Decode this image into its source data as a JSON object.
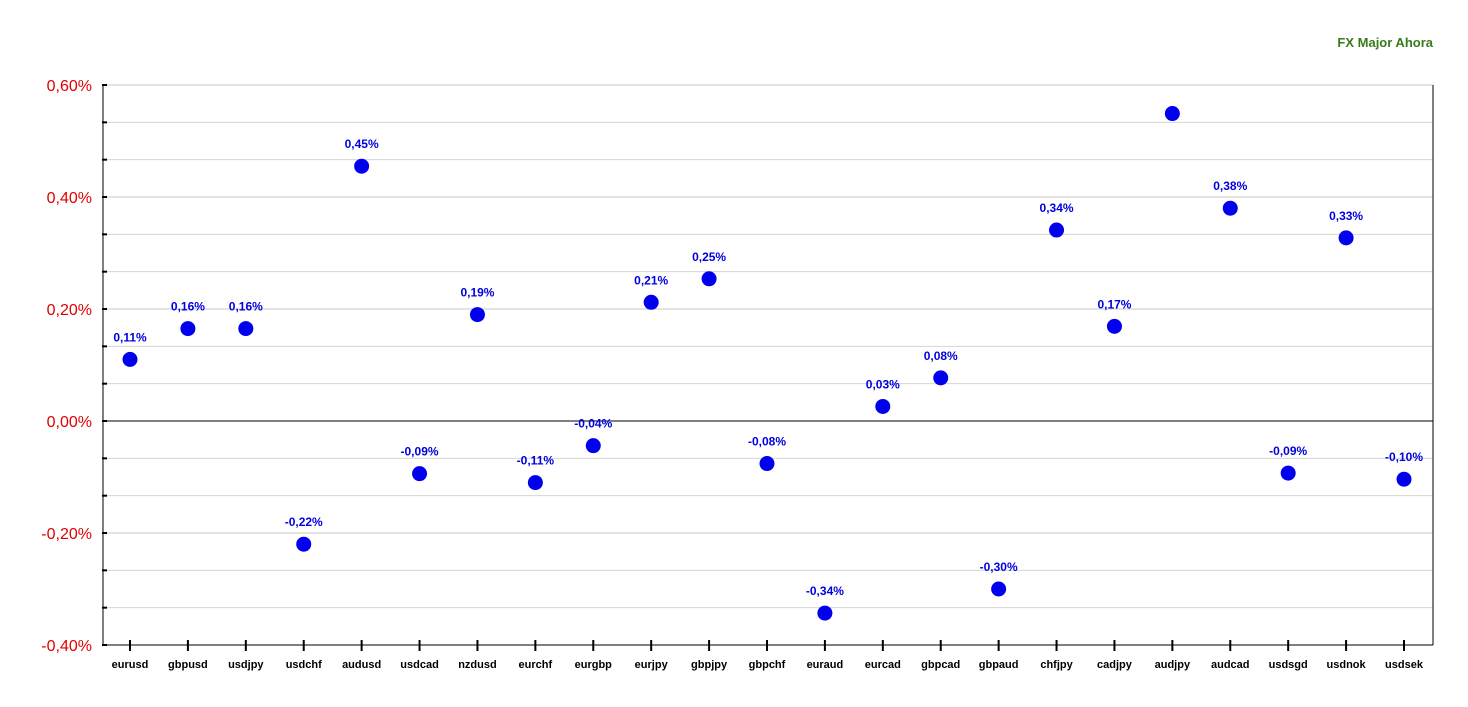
{
  "chart_data": {
    "type": "scatter",
    "title": "FX Major Ahora",
    "categories": [
      "eurusd",
      "gbpusd",
      "usdjpy",
      "usdchf",
      "audusd",
      "usdcad",
      "nzdusd",
      "eurchf",
      "eurgbp",
      "eurjpy",
      "gbpjpy",
      "gbpchf",
      "euraud",
      "eurcad",
      "gbpcad",
      "gbpaud",
      "chfjpy",
      "cadjpy",
      "audjpy",
      "audcad",
      "usdsgd",
      "usdnok",
      "usdsek"
    ],
    "values": [
      0.11,
      0.165,
      0.165,
      -0.22,
      0.455,
      -0.094,
      0.19,
      -0.11,
      -0.044,
      0.212,
      0.254,
      -0.076,
      -0.343,
      0.026,
      0.077,
      -0.3,
      0.341,
      0.169,
      0.549,
      0.38,
      -0.093,
      0.327,
      -0.104
    ],
    "labels": [
      "0,11%",
      "0,16%",
      "0,16%",
      "-0,22%",
      "0,45%",
      "-0,09%",
      "0,19%",
      "-0,11%",
      "-0,04%",
      "0,21%",
      "0,25%",
      "-0,08%",
      "-0,34%",
      "0,03%",
      "0,08%",
      "-0,30%",
      "0,34%",
      "0,17%",
      "",
      "0,38%",
      "-0,09%",
      "0,33%",
      "-0,10%"
    ],
    "ylim": [
      -0.4,
      0.6
    ],
    "yticks": [
      -0.4,
      -0.2,
      0.0,
      0.2,
      0.4,
      0.6
    ],
    "ytick_labels": [
      "-0,40%",
      "-0,20%",
      "0,00%",
      "0,20%",
      "0,40%",
      "0,60%"
    ],
    "minor_step": 0.0667,
    "grid": true,
    "point_color": "#0000ee",
    "label_color": "#0000e0",
    "ytick_color": "#e00000",
    "title_color": "#3a7a1a"
  }
}
